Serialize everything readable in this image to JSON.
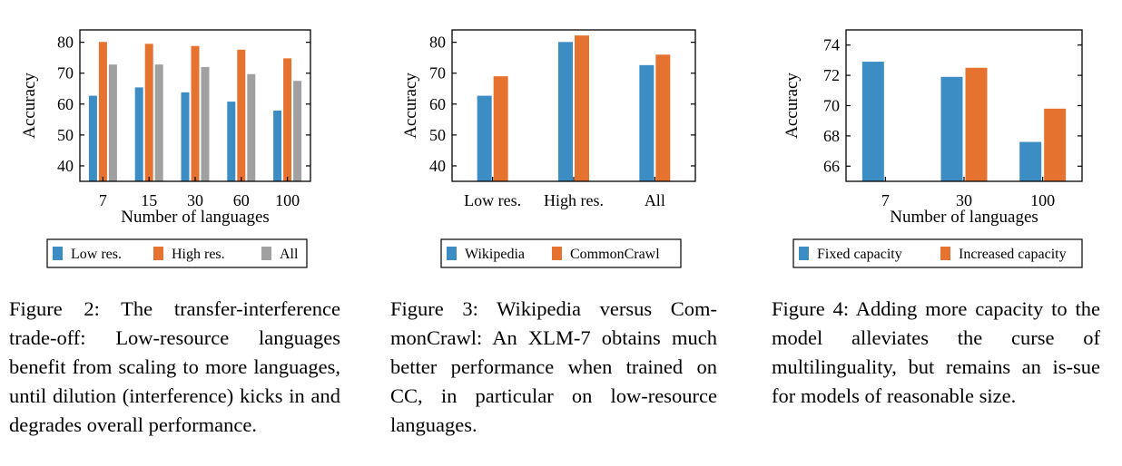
{
  "colors": {
    "blue": "#3C8DC4",
    "orange": "#E6722F",
    "gray": "#A0A0A0"
  },
  "chart_data": [
    {
      "type": "bar",
      "categories": [
        "7",
        "15",
        "30",
        "60",
        "100"
      ],
      "series": [
        {
          "name": "Low res.",
          "color": "#3C8DC4",
          "values": [
            62.7,
            65.4,
            63.8,
            60.8,
            57.9
          ]
        },
        {
          "name": "High res.",
          "color": "#E6722F",
          "values": [
            80.1,
            79.5,
            78.8,
            77.6,
            74.8
          ]
        },
        {
          "name": "All",
          "color": "#A0A0A0",
          "values": [
            72.8,
            72.8,
            72.0,
            69.7,
            67.5
          ]
        }
      ],
      "ylim": [
        35,
        84
      ],
      "yticks": [
        40,
        50,
        60,
        70,
        80
      ],
      "xlabel": "Number of languages",
      "ylabel": "Accuracy",
      "legend": "below"
    },
    {
      "type": "bar",
      "categories": [
        "Low res.",
        "High res.",
        "All"
      ],
      "series": [
        {
          "name": "Wikipedia",
          "color": "#3C8DC4",
          "values": [
            62.7,
            80.1,
            72.6
          ]
        },
        {
          "name": "CommonCrawl",
          "color": "#E6722F",
          "values": [
            69.0,
            82.2,
            76.0
          ]
        }
      ],
      "ylim": [
        35,
        84
      ],
      "yticks": [
        40,
        50,
        60,
        70,
        80
      ],
      "xlabel": "",
      "ylabel": "Accuracy",
      "legend": "below"
    },
    {
      "type": "bar",
      "categories": [
        "7",
        "30",
        "100"
      ],
      "series": [
        {
          "name": "Fixed capacity",
          "color": "#3C8DC4",
          "values": [
            72.9,
            71.9,
            67.6
          ]
        },
        {
          "name": "Increased capacity",
          "color": "#E6722F",
          "values": [
            null,
            72.5,
            69.8
          ]
        }
      ],
      "ylim": [
        65,
        75
      ],
      "yticks": [
        66,
        68,
        70,
        72,
        74
      ],
      "xlabel": "Number of languages",
      "ylabel": "Accuracy",
      "legend": "below"
    }
  ],
  "captions": [
    "Figure 2: The transfer-interference trade-off: Low-resource languages benefit from scaling to more languages, until dilution (interference) kicks in and degrades overall performance.",
    "Figure 3: Wikipedia versus Com-monCrawl: An XLM-7 obtains much better performance when trained on CC, in particular on low-resource languages.",
    "Figure 4: Adding more capacity to the model alleviates the curse of multilinguality, but remains an is-sue for models of reasonable size."
  ]
}
